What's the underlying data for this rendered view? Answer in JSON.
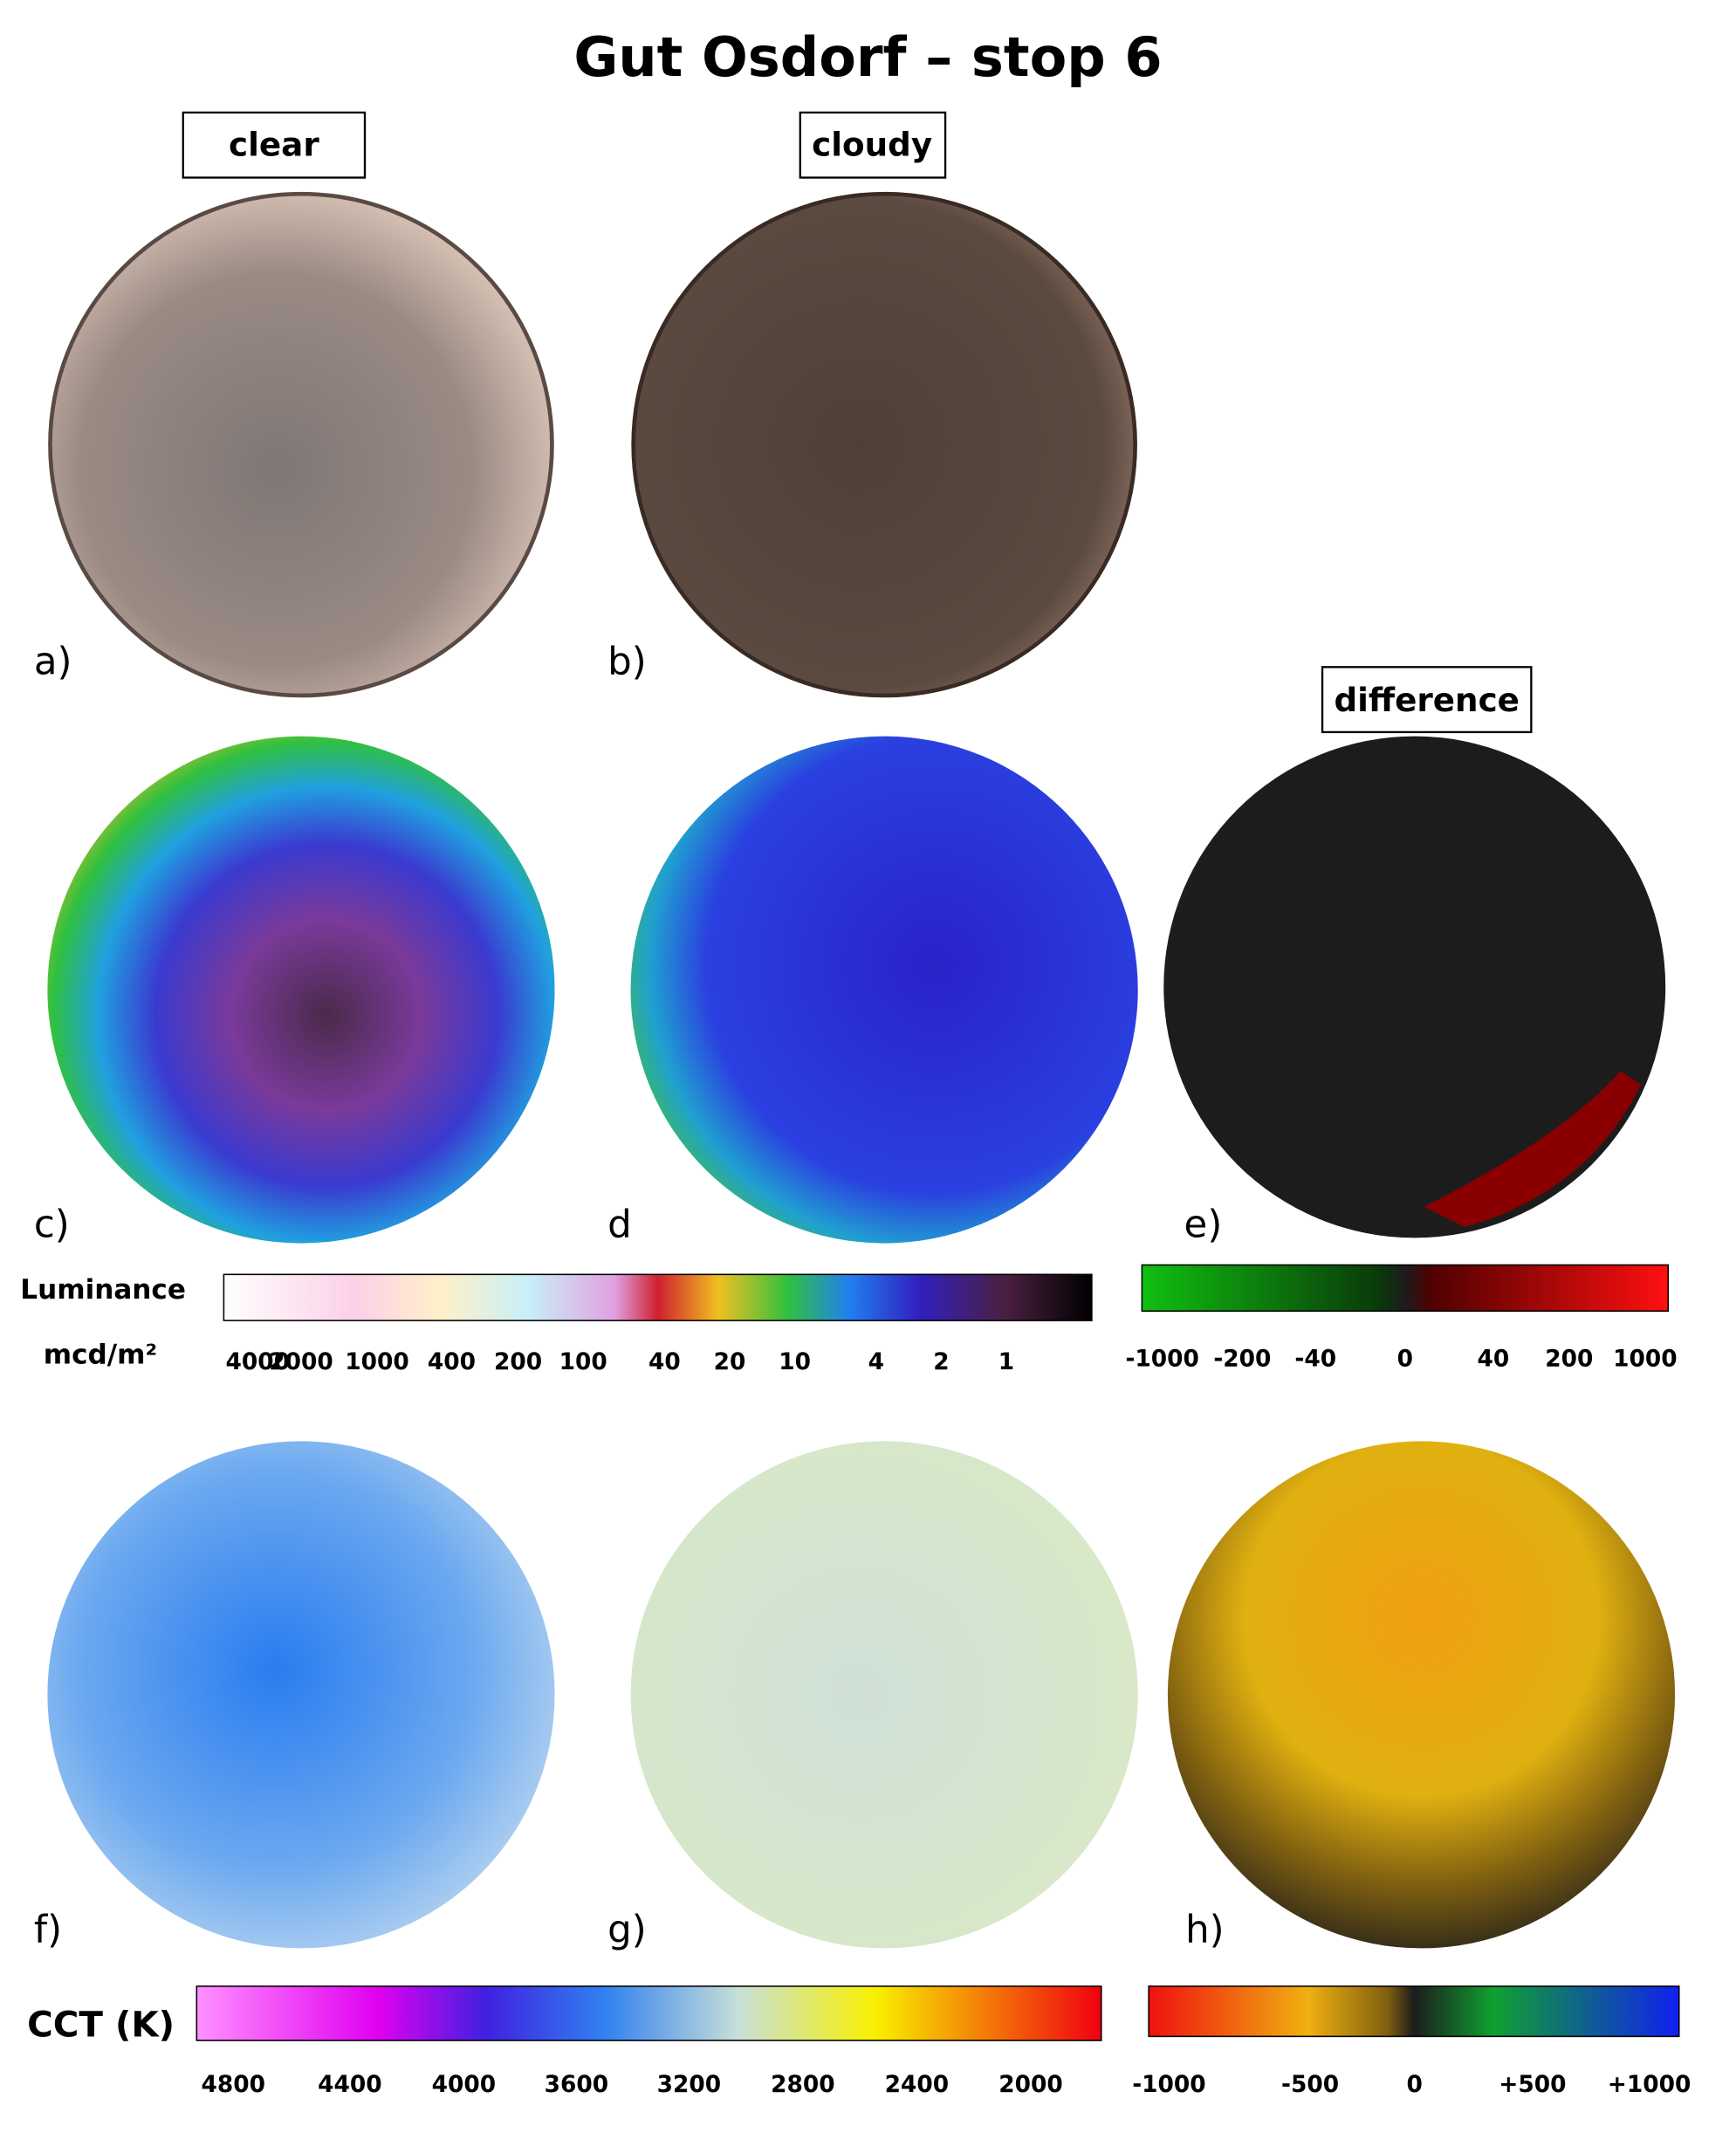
{
  "title": "Gut Osdorf – stop 6",
  "headers": {
    "clear": "clear",
    "cloudy": "cloudy",
    "difference": "difference"
  },
  "panels": [
    "a)",
    "b)",
    "c)",
    "d",
    "e)",
    "f)",
    "g)",
    "h)"
  ],
  "luminance_scale": {
    "title": "Luminance",
    "unit": "mcd/m²",
    "ticks": [
      4000,
      2000,
      1000,
      400,
      200,
      100,
      40,
      20,
      10,
      4,
      2,
      1
    ]
  },
  "luminance_difference_scale": {
    "ticks": [
      -1000,
      -200,
      -40,
      0,
      40,
      200,
      1000
    ]
  },
  "cct_scale": {
    "title": "CCT (K)",
    "ticks": [
      4800,
      4400,
      4000,
      3600,
      3200,
      2800,
      2400,
      2000
    ]
  },
  "cct_difference_scale": {
    "ticks": [
      -1000,
      -500,
      0,
      "+500",
      "+1000"
    ]
  }
}
